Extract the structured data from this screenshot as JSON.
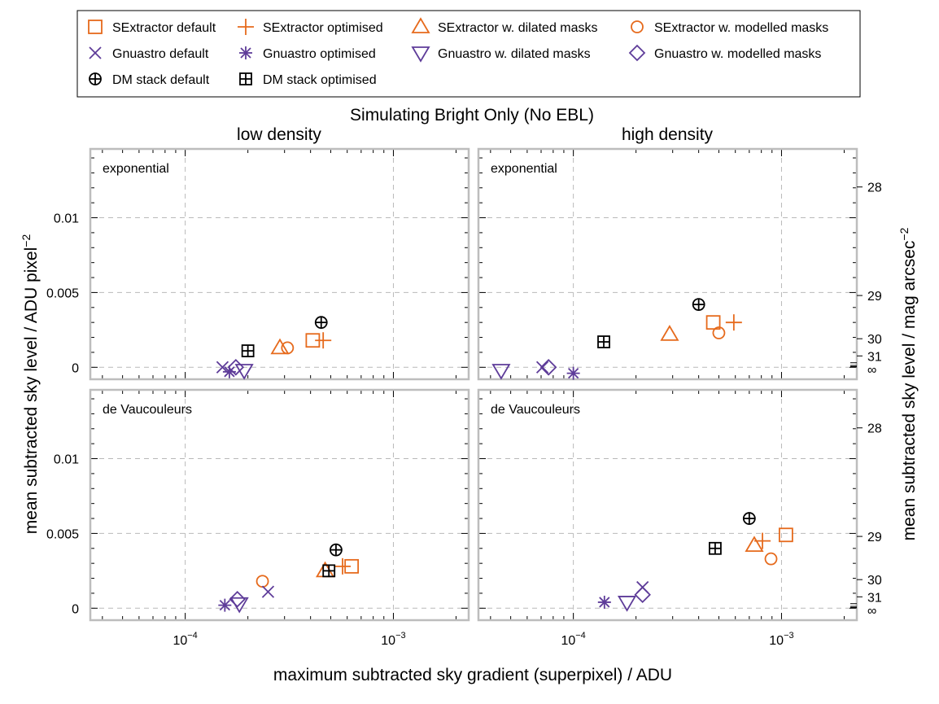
{
  "title": "Simulating Bright Only (No EBL)",
  "colors": {
    "orange": "#e66a1c",
    "purple": "#5e3c99",
    "black": "#000000",
    "grid": "#b9b9b9",
    "frame": "#bdbdbd"
  },
  "chart_data": {
    "type": "scatter",
    "title": "Simulating Bright Only (No EBL)",
    "xlabel": "maximum subtracted sky gradient (superpixel) / ADU",
    "ylabel": "mean subtracted sky level / ADU pixel^-2",
    "ylabel_right": "mean subtracted sky level / mag arcsec^-2",
    "x_scale": "log",
    "xlim_low_density": [
      3.5e-05,
      0.0023
    ],
    "xlim_high_density": [
      3.5e-05,
      0.0023
    ],
    "ylim": [
      -0.0008,
      0.0146
    ],
    "x_ticks": [
      "10^-4",
      "10^-3"
    ],
    "y_ticks": [
      "0",
      "0.005",
      "0.01"
    ],
    "y2_ticks": [
      "28",
      "29",
      "30",
      "31",
      "∞"
    ],
    "grid": true,
    "legend_position": "top",
    "legend": [
      {
        "name": "SExtractor default",
        "marker": "square",
        "color": "orange"
      },
      {
        "name": "SExtractor optimised",
        "marker": "plus",
        "color": "orange"
      },
      {
        "name": "SExtractor w. dilated masks",
        "marker": "triangle-up",
        "color": "orange"
      },
      {
        "name": "SExtractor w. modelled masks",
        "marker": "circle",
        "color": "orange"
      },
      {
        "name": "Gnuastro default",
        "marker": "x",
        "color": "purple"
      },
      {
        "name": "Gnuastro optimised",
        "marker": "asterisk",
        "color": "purple"
      },
      {
        "name": "Gnuastro w. dilated masks",
        "marker": "triangle-down",
        "color": "purple"
      },
      {
        "name": "Gnuastro w. modelled masks",
        "marker": "diamond",
        "color": "purple"
      },
      {
        "name": "DM stack default",
        "marker": "circle-plus",
        "color": "black"
      },
      {
        "name": "DM stack optimised",
        "marker": "square-plus",
        "color": "black"
      }
    ],
    "panels": [
      {
        "density": "low density",
        "profile": "exponential",
        "points": [
          [
            0.00041,
            0.0018
          ],
          [
            0.00046,
            0.0018
          ],
          [
            0.000285,
            0.0013
          ],
          [
            0.00031,
            0.0013
          ],
          [
            0.000151,
            0.0
          ],
          [
            0.000163,
            -0.0003
          ],
          [
            0.000192,
            -0.0002
          ],
          [
            0.000175,
            0.0
          ],
          [
            0.00045,
            0.003
          ],
          [
            0.0002,
            0.0011
          ]
        ]
      },
      {
        "density": "high density",
        "profile": "exponential",
        "points": [
          [
            0.00047,
            0.003
          ],
          [
            0.00059,
            0.003
          ],
          [
            0.00029,
            0.0022
          ],
          [
            0.0005,
            0.0023
          ],
          [
            7.1e-05,
            0.0
          ],
          [
            0.0001,
            -0.0004
          ],
          [
            4.5e-05,
            -0.0002
          ],
          [
            7.6e-05,
            0.0
          ],
          [
            0.0004,
            0.0042
          ],
          [
            0.00014,
            0.0017
          ]
        ]
      },
      {
        "density": "low density",
        "profile": "de Vaucouleurs",
        "points": [
          [
            0.00063,
            0.0028
          ],
          [
            0.00057,
            0.0028
          ],
          [
            0.00047,
            0.0025
          ],
          [
            0.000235,
            0.0018
          ],
          [
            0.00025,
            0.0011
          ],
          [
            0.000155,
            0.0002
          ],
          [
            0.000182,
            0.0003
          ],
          [
            0.000178,
            0.0006
          ],
          [
            0.00053,
            0.0039
          ],
          [
            0.00049,
            0.0025
          ]
        ]
      },
      {
        "density": "high density",
        "profile": "de Vaucouleurs",
        "points": [
          [
            0.00105,
            0.0049
          ],
          [
            0.00081,
            0.0045
          ],
          [
            0.00074,
            0.0042
          ],
          [
            0.00089,
            0.0033
          ],
          [
            0.000215,
            0.0014
          ],
          [
            0.000141,
            0.0004
          ],
          [
            0.000181,
            0.0004
          ],
          [
            0.000215,
            0.0009
          ],
          [
            0.0007,
            0.006
          ],
          [
            0.00048,
            0.004
          ]
        ]
      }
    ]
  }
}
